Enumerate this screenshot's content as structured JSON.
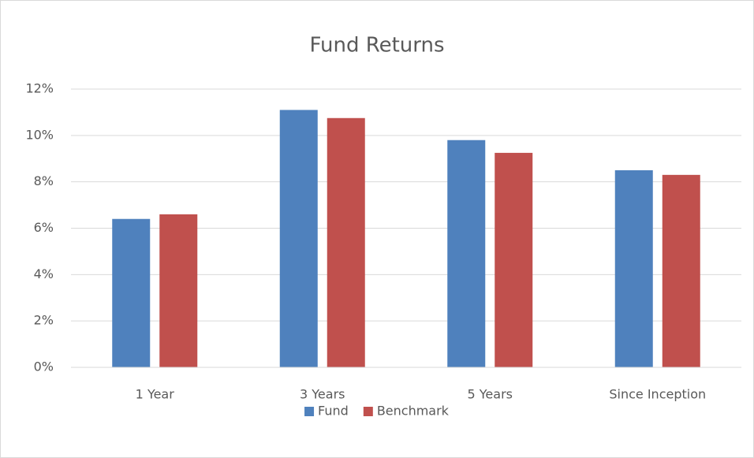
{
  "chart_data": {
    "type": "bar",
    "title": "Fund Returns",
    "categories": [
      "1 Year",
      "3 Years",
      "5 Years",
      "Since Inception"
    ],
    "series": [
      {
        "name": "Fund",
        "color": "#4f81bd",
        "values": [
          6.4,
          11.1,
          9.8,
          8.5
        ]
      },
      {
        "name": "Benchmark",
        "color": "#c0504d",
        "values": [
          6.6,
          10.75,
          9.25,
          8.3
        ]
      }
    ],
    "ylim": [
      0,
      12
    ],
    "yticks": [
      {
        "value": 0,
        "label": "0%"
      },
      {
        "value": 2,
        "label": "2%"
      },
      {
        "value": 4,
        "label": "4%"
      },
      {
        "value": 6,
        "label": "6%"
      },
      {
        "value": 8,
        "label": "8%"
      },
      {
        "value": 10,
        "label": "10%"
      },
      {
        "value": 12,
        "label": "12%"
      }
    ],
    "grid": true,
    "legend": "bottom"
  }
}
